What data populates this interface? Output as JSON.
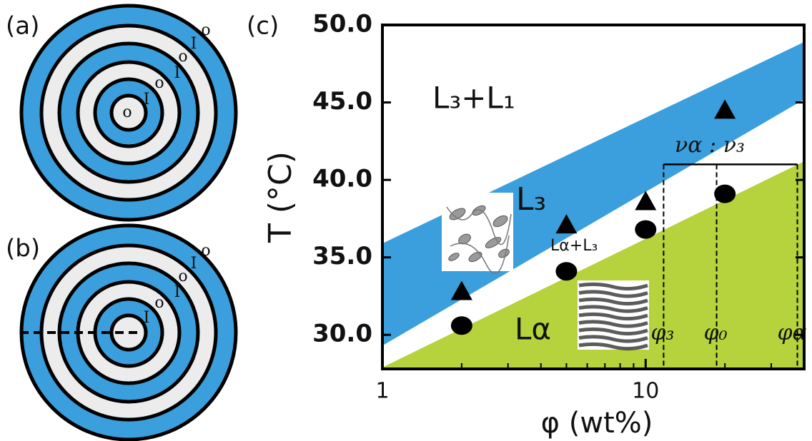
{
  "panels": {
    "a": {
      "label": "(a)",
      "marks": [
        "o",
        "I",
        "o",
        "I",
        "o",
        "I",
        "o"
      ]
    },
    "b": {
      "label": "(b)",
      "marks": [
        "I",
        "o",
        "I",
        "o",
        "I",
        "o"
      ]
    },
    "ring_colors": [
      "#3a9fdc",
      "#ececec"
    ]
  },
  "chart_data": {
    "type": "scatter",
    "panel_label": "(c)",
    "x_label": "φ (wt%)",
    "y_label": "T (°C)",
    "xlog": true,
    "xlim": [
      1,
      40
    ],
    "ylim": [
      27.8,
      50
    ],
    "xticks": [
      1,
      10
    ],
    "xticks_minor": [
      2,
      3,
      4,
      5,
      6,
      7,
      8,
      9,
      20,
      30
    ],
    "yticks": [
      {
        "value": 30,
        "label": "30.0"
      },
      {
        "value": 35,
        "label": "35.0"
      },
      {
        "value": 40,
        "label": "40.0"
      },
      {
        "value": 45,
        "label": "45.0"
      },
      {
        "value": 50,
        "label": "50.0"
      }
    ],
    "regions": [
      {
        "color": "#3a9fdc",
        "upper": [
          35.9,
          48.9
        ],
        "lower": [
          29.3,
          45.2
        ]
      },
      {
        "color": "#b6d23c",
        "upper": [
          27.9,
          41.2
        ]
      }
    ],
    "series": [
      {
        "marker": "triangle",
        "color": "#000000",
        "x": [
          2,
          5,
          10,
          20
        ],
        "values": [
          32.8,
          37.1,
          38.6,
          44.5
        ]
      },
      {
        "marker": "circle",
        "color": "#000000",
        "x": [
          2,
          5,
          10,
          20
        ],
        "values": [
          30.6,
          34.1,
          36.8,
          39.1
        ]
      }
    ],
    "phase_lines": {
      "x": [
        11.7,
        18.6,
        37.7
      ],
      "labels": [
        "φ₃",
        "φ₀",
        "φα"
      ],
      "top": 41,
      "bracket_label": "να : ν₃"
    },
    "annotations": [
      "L₃+L₁",
      "L₃",
      "Lα+L₃",
      "Lα"
    ]
  }
}
